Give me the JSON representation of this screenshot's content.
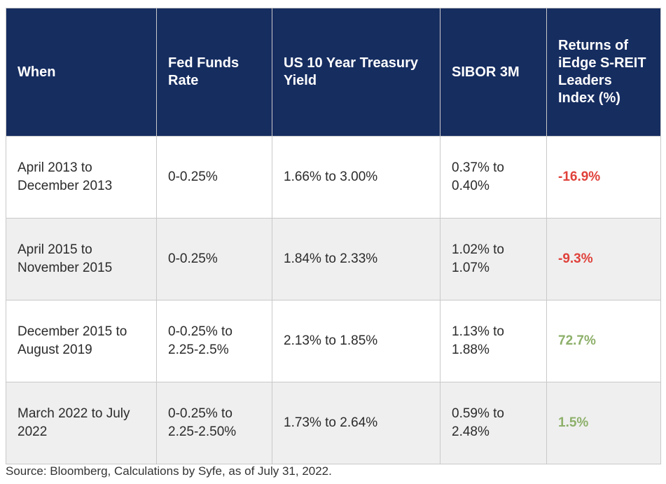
{
  "table": {
    "headers": [
      "When",
      "Fed Funds Rate",
      "US 10 Year Treasury Yield",
      "SIBOR 3M",
      "Returns of iEdge S-REIT Leaders Index (%)"
    ],
    "rows": [
      {
        "when": "April 2013 to December 2013",
        "fed_funds": "0-0.25%",
        "us10y": "1.66% to 3.00%",
        "sibor": "0.37% to 0.40%",
        "returns": "-16.9%"
      },
      {
        "when": "April 2015 to November 2015",
        "fed_funds": "0-0.25%",
        "us10y": "1.84% to 2.33%",
        "sibor": "1.02% to 1.07%",
        "returns": "-9.3%"
      },
      {
        "when": "December 2015 to August 2019",
        "fed_funds": "0-0.25% to 2.25-2.5%",
        "us10y": "2.13% to 1.85%",
        "sibor": "1.13% to 1.88%",
        "returns": "72.7%"
      },
      {
        "when": "March 2022 to July 2022",
        "fed_funds": "0-0.25% to 2.25-2.50%",
        "us10y": "1.73% to 2.64%",
        "sibor": "0.59% to 2.48%",
        "returns": "1.5%"
      }
    ]
  },
  "colors": {
    "header_bg": "#162d60",
    "negative": "#e0413b",
    "positive": "#8db06a",
    "row_alt": "#efefef"
  },
  "source": "Source: Bloomberg, Calculations by Syfe, as of July 31, 2022."
}
